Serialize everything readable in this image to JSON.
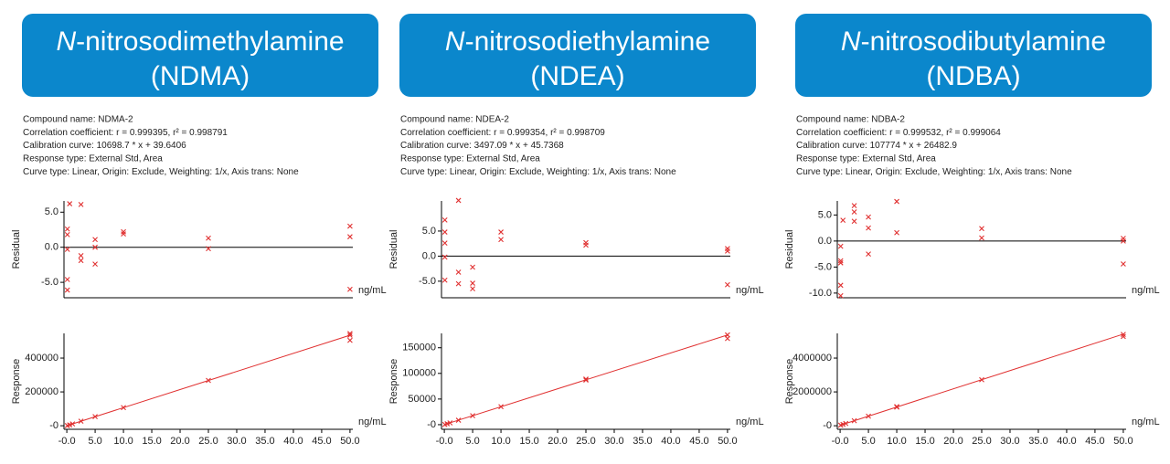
{
  "panels": [
    {
      "title_italic": "N",
      "title": "-nitrosodimethylamine",
      "abbrev": "(NDMA)",
      "info": [
        "Compound name: NDMA-2",
        "Correlation coefficient: r = 0.999395, r² = 0.998791",
        "Calibration curve: 10698.7 * x + 39.6406",
        "Response type: External Std, Area",
        "Curve type: Linear, Origin: Exclude, Weighting: 1/x, Axis trans: None"
      ]
    },
    {
      "title_italic": "N",
      "title": "-nitrosodiethylamine",
      "abbrev": "(NDEA)",
      "info": [
        "Compound name: NDEA-2",
        "Correlation coefficient: r = 0.999354, r² = 0.998709",
        "Calibration curve: 3497.09 * x + 45.7368",
        "Response type: External Std, Area",
        "Curve type: Linear, Origin: Exclude, Weighting: 1/x, Axis trans: None"
      ]
    },
    {
      "title_italic": "N",
      "title": "-nitrosodibutylamine",
      "abbrev": "(NDBA)",
      "info": [
        "Compound name: NDBA-2",
        "Correlation coefficient: r = 0.999532, r² = 0.999064",
        "Calibration curve: 107774 * x + 26482.9",
        "Response type: External Std, Area",
        "Curve type: Linear, Origin: Exclude, Weighting: 1/x, Axis trans: None"
      ]
    }
  ],
  "chart_data": [
    {
      "type": "scatter",
      "ylabel": "Residual",
      "xlabel": "ng/mL",
      "xlim": [
        -0.5,
        50.5
      ],
      "ylim": [
        -7.2,
        6.6
      ],
      "zero_line": true,
      "yticks": [
        {
          "value": 5,
          "label": "5.0"
        },
        {
          "value": 0,
          "label": "0.0"
        },
        {
          "value": -5,
          "label": "-5.0"
        }
      ],
      "series": [
        {
          "color": "#e03030",
          "x": [
            0.1,
            0.1,
            0.1,
            0.1,
            0.1,
            0.5,
            2.5,
            2.5,
            2.5,
            5,
            5,
            5,
            10,
            10,
            25,
            25,
            50,
            50,
            50
          ],
          "values": [
            2.6,
            1.8,
            -0.3,
            -4.6,
            -6.1,
            6.2,
            6.1,
            -1.2,
            -1.9,
            1.1,
            0.0,
            -2.4,
            2.2,
            1.9,
            1.3,
            -0.2,
            3.0,
            1.5,
            -6.0
          ]
        }
      ]
    },
    {
      "type": "scatter",
      "ylabel": "Response",
      "xlabel": "ng/mL",
      "xlim": [
        -0.5,
        50.5
      ],
      "ylim": [
        -21000,
        546000
      ],
      "yticks": [
        {
          "value": 0,
          "label": "-0"
        },
        200000,
        400000
      ],
      "xticks": [
        {
          "value": 0,
          "label": "-0.0"
        },
        {
          "value": 5,
          "label": "5.0"
        },
        {
          "value": 10,
          "label": "10.0"
        },
        {
          "value": 15,
          "label": "15.0"
        },
        {
          "value": 20,
          "label": "20.0"
        },
        {
          "value": 25,
          "label": "25.0"
        },
        {
          "value": 30,
          "label": "30.0"
        },
        {
          "value": 35,
          "label": "35.0"
        },
        {
          "value": 40,
          "label": "40.0"
        },
        {
          "value": 45,
          "label": "45.0"
        },
        {
          "value": 50,
          "label": "50.0"
        }
      ],
      "fit": {
        "color": "#e03030",
        "x": [
          0,
          50
        ],
        "values": [
          40,
          534975
        ]
      },
      "series": [
        {
          "color": "#e03030",
          "x": [
            0.1,
            0.5,
            1,
            2.5,
            5,
            10,
            25,
            50,
            50,
            50
          ],
          "values": [
            1000,
            5000,
            10700,
            27000,
            54000,
            107000,
            268000,
            535000,
            545000,
            505000
          ]
        }
      ]
    },
    {
      "type": "scatter",
      "ylabel": "Residual",
      "xlabel": "ng/mL",
      "xlim": [
        -0.5,
        50.5
      ],
      "ylim": [
        -8.3,
        11
      ],
      "zero_line": true,
      "yticks": [
        {
          "value": 5,
          "label": "5.0"
        },
        {
          "value": 0,
          "label": "0.0"
        },
        {
          "value": -5,
          "label": "-5.0"
        }
      ],
      "series": [
        {
          "color": "#e03030",
          "x": [
            0.1,
            0.1,
            0.1,
            0.1,
            0.1,
            2.5,
            2.5,
            2.5,
            5,
            5,
            5,
            10,
            10,
            25,
            25,
            50,
            50,
            50
          ],
          "values": [
            7.2,
            4.8,
            2.6,
            -0.2,
            -4.8,
            11.1,
            -3.2,
            -5.5,
            -2.2,
            -5.4,
            -6.5,
            4.8,
            3.3,
            2.7,
            2.2,
            1.5,
            1.0,
            -5.7
          ]
        }
      ]
    },
    {
      "type": "scatter",
      "ylabel": "Response",
      "xlabel": "ng/mL",
      "xlim": [
        -0.5,
        50.5
      ],
      "ylim": [
        -9000,
        178000
      ],
      "yticks": [
        {
          "value": 0,
          "label": "-0"
        },
        50000,
        100000,
        150000
      ],
      "xticks": [
        {
          "value": 0,
          "label": "-0.0"
        },
        {
          "value": 5,
          "label": "5.0"
        },
        {
          "value": 10,
          "label": "10.0"
        },
        {
          "value": 15,
          "label": "15.0"
        },
        {
          "value": 20,
          "label": "20.0"
        },
        {
          "value": 25,
          "label": "25.0"
        },
        {
          "value": 30,
          "label": "30.0"
        },
        {
          "value": 35,
          "label": "35.0"
        },
        {
          "value": 40,
          "label": "40.0"
        },
        {
          "value": 45,
          "label": "45.0"
        },
        {
          "value": 50,
          "label": "50.0"
        }
      ],
      "fit": {
        "color": "#e03030",
        "x": [
          0,
          50
        ],
        "values": [
          46,
          174900
        ]
      },
      "series": [
        {
          "color": "#e03030",
          "x": [
            0.1,
            0.5,
            1,
            2.5,
            5,
            10,
            25,
            25,
            50,
            50
          ],
          "values": [
            400,
            1800,
            3500,
            8700,
            17500,
            35000,
            87000,
            89000,
            175000,
            168000
          ]
        }
      ]
    },
    {
      "type": "scatter",
      "ylabel": "Residual",
      "xlabel": "ng/mL",
      "xlim": [
        -0.5,
        50.5
      ],
      "ylim": [
        -10.9,
        7.7
      ],
      "zero_line": true,
      "yticks": [
        {
          "value": 5,
          "label": "5.0"
        },
        {
          "value": 0,
          "label": "0.0"
        },
        {
          "value": -5,
          "label": "-5.0"
        },
        {
          "value": -10,
          "label": "-10.0"
        }
      ],
      "series": [
        {
          "color": "#e03030",
          "x": [
            0.1,
            0.1,
            0.1,
            0.1,
            0.1,
            0.5,
            2.5,
            2.5,
            2.5,
            5,
            5,
            5,
            10,
            10,
            25,
            25,
            50,
            50,
            50
          ],
          "values": [
            -1,
            -3.8,
            -4.2,
            -8.5,
            -10.5,
            4.0,
            6.8,
            5.6,
            3.8,
            4.6,
            2.5,
            -2.5,
            7.6,
            1.6,
            2.4,
            0.6,
            0.5,
            0.0,
            -4.4
          ]
        }
      ]
    },
    {
      "type": "scatter",
      "ylabel": "Response",
      "xlabel": "ng/mL",
      "xlim": [
        -0.5,
        50.5
      ],
      "ylim": [
        -210000,
        5460000
      ],
      "yticks": [
        {
          "value": 0,
          "label": "-0"
        },
        2000000,
        4000000
      ],
      "xticks": [
        {
          "value": 0,
          "label": "-0.0"
        },
        {
          "value": 5,
          "label": "5.0"
        },
        {
          "value": 10,
          "label": "10.0"
        },
        {
          "value": 15,
          "label": "15.0"
        },
        {
          "value": 20,
          "label": "20.0"
        },
        {
          "value": 25,
          "label": "25.0"
        },
        {
          "value": 30,
          "label": "30.0"
        },
        {
          "value": 35,
          "label": "35.0"
        },
        {
          "value": 40,
          "label": "40.0"
        },
        {
          "value": 45,
          "label": "45.0"
        },
        {
          "value": 50,
          "label": "50.0"
        }
      ],
      "fit": {
        "color": "#e03030",
        "x": [
          0,
          50
        ],
        "values": [
          26483,
          5415183
        ]
      },
      "series": [
        {
          "color": "#e03030",
          "x": [
            0.1,
            0.5,
            1,
            2.5,
            5,
            10,
            10,
            25,
            50,
            50
          ],
          "values": [
            37000,
            80000,
            134000,
            296000,
            565000,
            1100000,
            1130000,
            2720000,
            5400000,
            5280000
          ]
        }
      ]
    }
  ]
}
